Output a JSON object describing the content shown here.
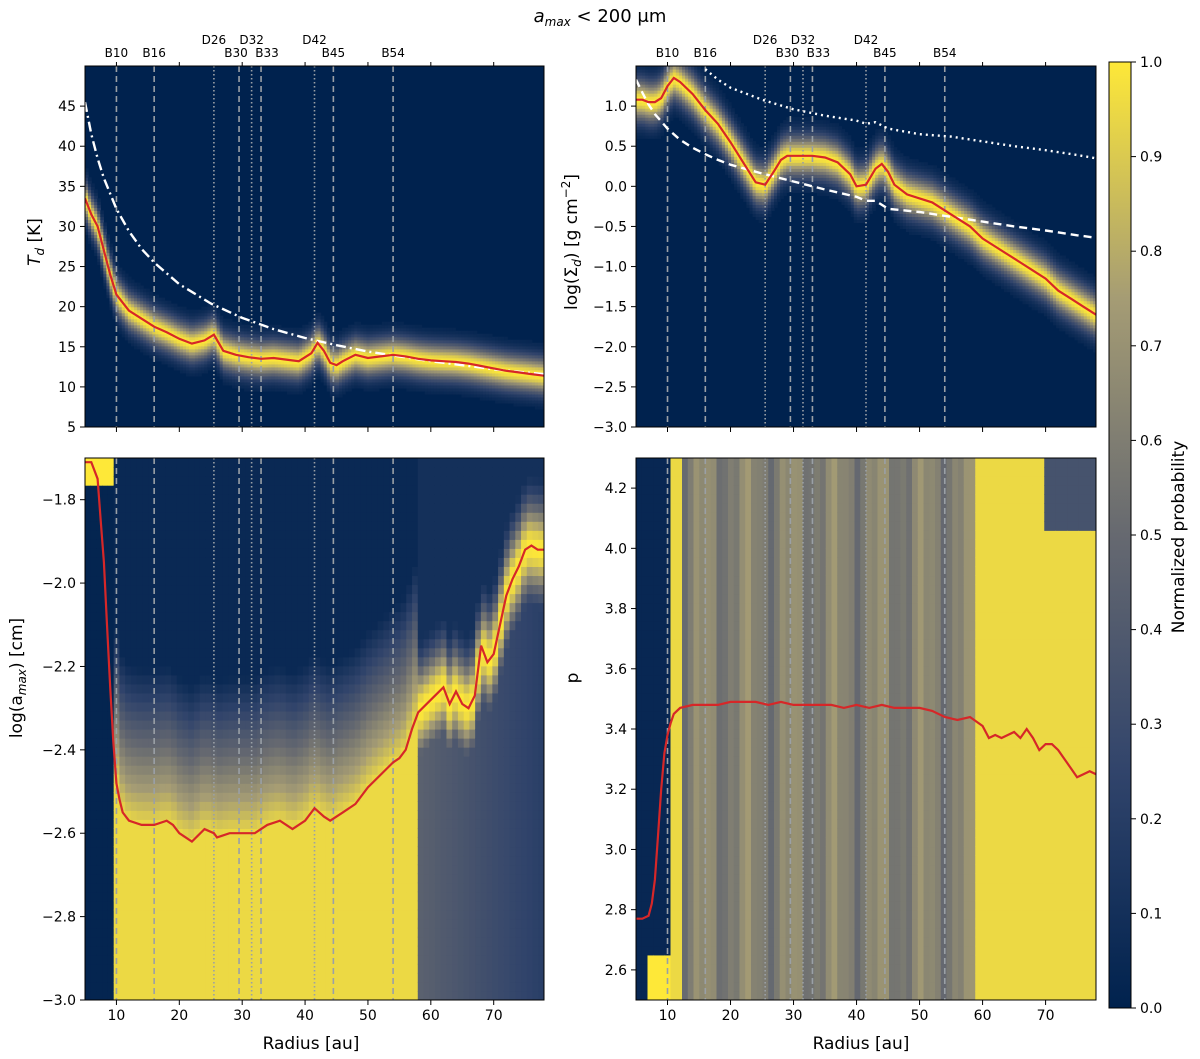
{
  "figure": {
    "title": "a_max < 200 μm",
    "title_main": "a",
    "title_sub": "max",
    "title_rest": " < 200 μm"
  },
  "colorbar": {
    "label": "Normalized probability",
    "range": [
      0.0,
      1.0
    ],
    "ticks": [
      "0.0",
      "0.1",
      "0.2",
      "0.3",
      "0.4",
      "0.5",
      "0.6",
      "0.7",
      "0.8",
      "0.9",
      "1.0"
    ],
    "stops": [
      {
        "v": 0.0,
        "color": "#00224e"
      },
      {
        "v": 0.25,
        "color": "#31446b"
      },
      {
        "v": 0.5,
        "color": "#666970"
      },
      {
        "v": 0.75,
        "color": "#a59c74"
      },
      {
        "v": 1.0,
        "color": "#fee838"
      }
    ]
  },
  "markers": {
    "top_labels": [
      "B10",
      "B16",
      "D26",
      "B30",
      "D32",
      "B33",
      "D42",
      "B45",
      "B54"
    ],
    "radii": [
      10,
      16,
      25.5,
      29.5,
      31.5,
      33,
      41.5,
      44.5,
      54
    ],
    "styles": [
      "dashed",
      "dashed",
      "dotted",
      "dashed",
      "dotted",
      "dashed",
      "dotted",
      "dashed",
      "dashed"
    ]
  },
  "chart_data": [
    {
      "type": "heatmap",
      "panel": "top-left",
      "ylabel": "T_d [K]",
      "ylabel_main": "T",
      "ylabel_sub": "d",
      "ylabel_rest": " [K]",
      "xlabel": "",
      "xlim": [
        5,
        78
      ],
      "ylim": [
        5,
        50
      ],
      "x_ticks": [
        "10",
        "20",
        "30",
        "40",
        "50",
        "60",
        "70"
      ],
      "y_ticks": [
        "5",
        "10",
        "15",
        "20",
        "25",
        "30",
        "35",
        "40",
        "45"
      ],
      "best_fit": {
        "x": [
          5,
          6,
          7,
          8,
          9,
          10,
          12,
          14,
          16,
          18,
          20,
          22,
          24,
          25.5,
          27,
          29,
          31,
          33,
          35,
          37,
          39,
          41,
          42,
          43,
          44,
          45,
          46,
          48,
          50,
          52,
          54,
          56,
          58,
          60,
          62,
          64,
          66,
          68,
          70,
          72,
          74,
          76,
          78
        ],
        "y": [
          33.5,
          31.5,
          30,
          27,
          24,
          21.5,
          19.5,
          18.5,
          17.5,
          16.8,
          16,
          15.4,
          15.8,
          16.5,
          14.5,
          14,
          13.7,
          13.5,
          13.6,
          13.4,
          13.2,
          14.2,
          15.5,
          14.5,
          13,
          12.7,
          13.2,
          14,
          13.6,
          13.8,
          14,
          13.8,
          13.5,
          13.3,
          13.2,
          13.1,
          12.9,
          12.6,
          12.3,
          12.0,
          11.8,
          11.6,
          11.4
        ]
      },
      "reference_curve": {
        "style": "dash-dot",
        "color": "#ffffff",
        "x": [
          5,
          6,
          7,
          8,
          10,
          12,
          14,
          16,
          20,
          25,
          30,
          35,
          40,
          45,
          50,
          55,
          60,
          65,
          70,
          75,
          78
        ],
        "y": [
          45.5,
          41.5,
          38.5,
          36,
          32.2,
          29.4,
          27.2,
          25.5,
          22.8,
          20.4,
          18.6,
          17.2,
          16.1,
          15.2,
          14.4,
          13.8,
          13.2,
          12.7,
          12.2,
          11.8,
          11.6
        ]
      }
    },
    {
      "type": "heatmap",
      "panel": "top-right",
      "ylabel": "log(Σ_d) [g cm^-2]",
      "ylabel_main": "log(Σ",
      "ylabel_sub": "d",
      "ylabel_rest": ") [g cm",
      "ylabel_sup": "−2",
      "ylabel_end": "]",
      "xlabel": "",
      "xlim": [
        5,
        78
      ],
      "ylim": [
        -3.0,
        1.5
      ],
      "x_ticks": [
        "10",
        "20",
        "30",
        "40",
        "50",
        "60",
        "70"
      ],
      "y_ticks": [
        "−3.0",
        "−2.5",
        "−2.0",
        "−1.5",
        "−1.0",
        "−0.5",
        "0.0",
        "0.5",
        "1.0"
      ],
      "best_fit": {
        "x": [
          5,
          6,
          7,
          8,
          9,
          10,
          11,
          12,
          14,
          16,
          18,
          20,
          22,
          24,
          25.5,
          27,
          28,
          29,
          31,
          33,
          35,
          37,
          39,
          40,
          41.5,
          43,
          44,
          45,
          46,
          48,
          50,
          52,
          54,
          56,
          58,
          60,
          62,
          64,
          66,
          68,
          70,
          72,
          74,
          76,
          78
        ],
        "y": [
          1.08,
          1.08,
          1.05,
          1.05,
          1.1,
          1.25,
          1.35,
          1.3,
          1.15,
          0.95,
          0.78,
          0.55,
          0.3,
          0.05,
          0.02,
          0.2,
          0.33,
          0.38,
          0.38,
          0.38,
          0.36,
          0.3,
          0.15,
          0.0,
          0.02,
          0.22,
          0.28,
          0.18,
          0.02,
          -0.1,
          -0.15,
          -0.2,
          -0.3,
          -0.4,
          -0.5,
          -0.65,
          -0.75,
          -0.85,
          -0.95,
          -1.05,
          -1.15,
          -1.3,
          -1.4,
          -1.5,
          -1.6
        ]
      },
      "reference_curves": [
        {
          "style": "dashed",
          "color": "#ffffff",
          "x": [
            5,
            6,
            7,
            8,
            10,
            12,
            14,
            16,
            18,
            20,
            25,
            30,
            35,
            40,
            41.5,
            43,
            45,
            50,
            55,
            60,
            65,
            70,
            75,
            78
          ],
          "y": [
            1.33,
            1.17,
            1.02,
            0.9,
            0.72,
            0.58,
            0.48,
            0.4,
            0.33,
            0.27,
            0.16,
            0.06,
            -0.04,
            -0.13,
            -0.18,
            -0.18,
            -0.28,
            -0.32,
            -0.38,
            -0.44,
            -0.5,
            -0.55,
            -0.61,
            -0.64
          ]
        },
        {
          "style": "dotted",
          "color": "#ffffff",
          "x": [
            16,
            18,
            20,
            25,
            30,
            35,
            40,
            41.5,
            43,
            45,
            50,
            55,
            60,
            65,
            70,
            75,
            78
          ],
          "y": [
            1.46,
            1.33,
            1.23,
            1.08,
            0.96,
            0.88,
            0.82,
            0.78,
            0.8,
            0.72,
            0.65,
            0.62,
            0.56,
            0.5,
            0.45,
            0.39,
            0.35
          ]
        }
      ]
    },
    {
      "type": "heatmap",
      "panel": "bottom-left",
      "ylabel": "log(a_max) [cm]",
      "ylabel_main": "log(a",
      "ylabel_sub": "max",
      "ylabel_rest": ") [cm]",
      "xlabel": "Radius [au]",
      "xlim": [
        5,
        78
      ],
      "ylim": [
        -3.0,
        -1.7
      ],
      "x_ticks": [
        "10",
        "20",
        "30",
        "40",
        "50",
        "60",
        "70"
      ],
      "y_ticks": [
        "−3.0",
        "−2.8",
        "−2.6",
        "−2.4",
        "−2.2",
        "−2.0",
        "−1.8"
      ],
      "best_fit": {
        "x": [
          5,
          6,
          7,
          7.5,
          8,
          8.5,
          9,
          9.5,
          10,
          10.5,
          11,
          12,
          14,
          16,
          18,
          19,
          20,
          22,
          24,
          25.5,
          26,
          28,
          30,
          32,
          34,
          36,
          38,
          40,
          41.5,
          43,
          44,
          45,
          46,
          48,
          50,
          52,
          54,
          55,
          56,
          57,
          58,
          60,
          62,
          63,
          64,
          65,
          66,
          67,
          68,
          69,
          70,
          71,
          72,
          73,
          74,
          75,
          76,
          77,
          78
        ],
        "y": [
          -1.71,
          -1.71,
          -1.75,
          -1.85,
          -1.95,
          -2.1,
          -2.25,
          -2.38,
          -2.48,
          -2.52,
          -2.55,
          -2.57,
          -2.58,
          -2.58,
          -2.57,
          -2.58,
          -2.6,
          -2.62,
          -2.59,
          -2.6,
          -2.61,
          -2.6,
          -2.6,
          -2.6,
          -2.58,
          -2.57,
          -2.59,
          -2.57,
          -2.54,
          -2.56,
          -2.57,
          -2.56,
          -2.55,
          -2.53,
          -2.49,
          -2.46,
          -2.43,
          -2.42,
          -2.4,
          -2.35,
          -2.31,
          -2.28,
          -2.25,
          -2.29,
          -2.26,
          -2.29,
          -2.3,
          -2.27,
          -2.15,
          -2.19,
          -2.17,
          -2.1,
          -2.03,
          -1.99,
          -1.96,
          -1.92,
          -1.91,
          -1.92,
          -1.92
        ]
      }
    },
    {
      "type": "heatmap",
      "panel": "bottom-right",
      "ylabel": "p",
      "xlabel": "Radius [au]",
      "xlim": [
        5,
        78
      ],
      "ylim": [
        2.5,
        4.3
      ],
      "x_ticks": [
        "10",
        "20",
        "30",
        "40",
        "50",
        "60",
        "70"
      ],
      "y_ticks": [
        "2.6",
        "2.8",
        "3.0",
        "3.2",
        "3.4",
        "3.6",
        "3.8",
        "4.0",
        "4.2"
      ],
      "best_fit": {
        "x": [
          5,
          6,
          7,
          7.5,
          8,
          8.5,
          9,
          9.5,
          10,
          10.5,
          11,
          12,
          14,
          16,
          18,
          20,
          22,
          24,
          26,
          28,
          30,
          32,
          34,
          36,
          38,
          40,
          42,
          44,
          46,
          48,
          50,
          52,
          54,
          56,
          58,
          60,
          61,
          62,
          63,
          64,
          65,
          66,
          67,
          68,
          69,
          70,
          71,
          72,
          73,
          74,
          75,
          76,
          77,
          78
        ],
        "y": [
          2.77,
          2.77,
          2.78,
          2.82,
          2.9,
          3.05,
          3.2,
          3.32,
          3.38,
          3.42,
          3.45,
          3.47,
          3.48,
          3.48,
          3.48,
          3.49,
          3.49,
          3.49,
          3.48,
          3.49,
          3.48,
          3.48,
          3.48,
          3.48,
          3.47,
          3.48,
          3.47,
          3.48,
          3.47,
          3.47,
          3.47,
          3.46,
          3.44,
          3.43,
          3.44,
          3.41,
          3.37,
          3.38,
          3.37,
          3.38,
          3.39,
          3.37,
          3.4,
          3.37,
          3.33,
          3.35,
          3.35,
          3.33,
          3.3,
          3.27,
          3.24,
          3.25,
          3.26,
          3.25
        ]
      }
    }
  ]
}
